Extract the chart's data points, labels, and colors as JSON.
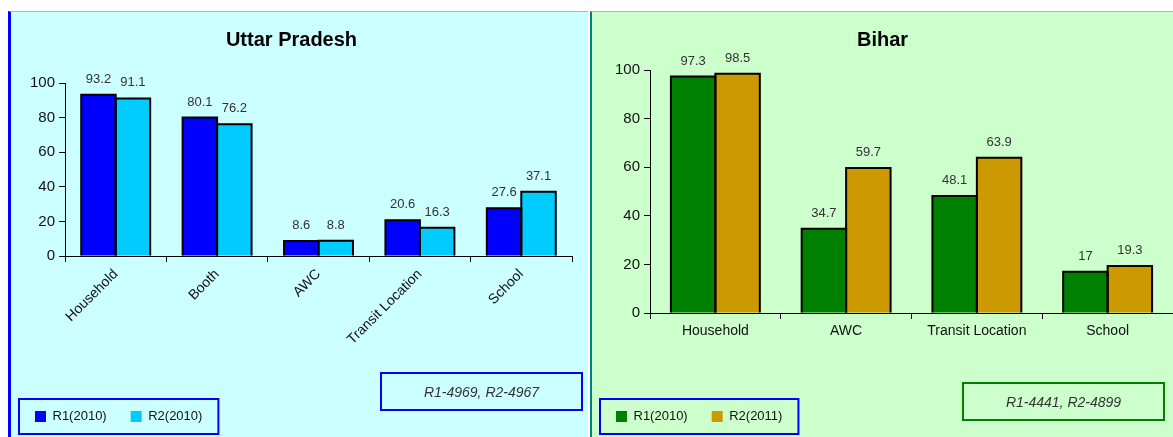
{
  "chart_data": [
    {
      "type": "bar",
      "title": "Uttar Pradesh",
      "categories": [
        "Household",
        "Booth",
        "AWC",
        "Transit Location",
        "School"
      ],
      "series": [
        {
          "name": "R1(2010)",
          "color": "#0000ff",
          "values": [
            93.2,
            80.1,
            8.6,
            20.6,
            27.6
          ]
        },
        {
          "name": "R2(2010)",
          "color": "#00ccff",
          "values": [
            91.1,
            76.2,
            8.8,
            16.3,
            37.1
          ]
        }
      ],
      "ylim": [
        0,
        100
      ],
      "yticks": [
        0,
        20,
        40,
        60,
        80,
        100
      ],
      "grid": false,
      "legend": "bottom left",
      "data_labels": true,
      "annotations": [
        "R1-4969, R2-4967"
      ]
    },
    {
      "type": "bar",
      "title": "Bihar",
      "categories": [
        "Household",
        "AWC",
        "Transit Location",
        "School"
      ],
      "series": [
        {
          "name": "R1(2010)",
          "color": "#008000",
          "values": [
            97.3,
            34.7,
            48.1,
            17
          ]
        },
        {
          "name": "R2(2011)",
          "color": "#cc9900",
          "values": [
            98.5,
            59.7,
            63.9,
            19.3
          ]
        }
      ],
      "ylim": [
        0,
        100
      ],
      "yticks": [
        0,
        20,
        40,
        60,
        80,
        100
      ],
      "grid": false,
      "legend": "bottom left",
      "data_labels": true,
      "annotations": [
        "R1-4441, R2-4899"
      ]
    }
  ]
}
